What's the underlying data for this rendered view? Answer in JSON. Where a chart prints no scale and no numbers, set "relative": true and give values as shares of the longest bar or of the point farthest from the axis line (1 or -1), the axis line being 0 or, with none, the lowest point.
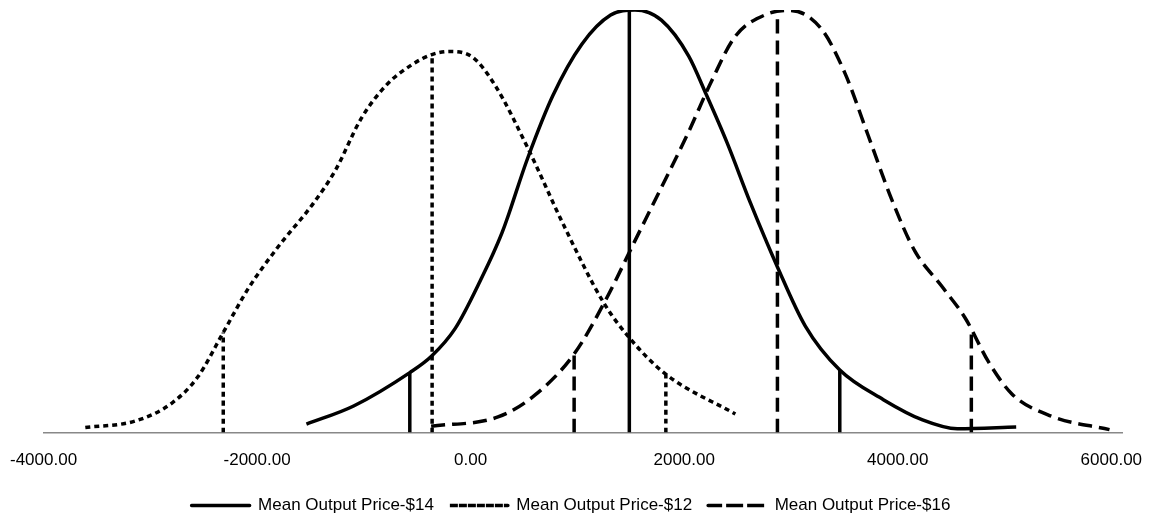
{
  "chart_data": {
    "type": "line",
    "relative": true,
    "xlim": [
      -4000,
      6100
    ],
    "xticks": [
      {
        "value": -4000,
        "label": "-4000.00"
      },
      {
        "value": -2000,
        "label": "-2000.00"
      },
      {
        "value": 0,
        "label": "0.00"
      },
      {
        "value": 2000,
        "label": "2000.00"
      },
      {
        "value": 4000,
        "label": "4000.00"
      },
      {
        "value": 6000,
        "label": "6000.00"
      }
    ],
    "grid": false,
    "legend": "bottom",
    "marker": "none",
    "series": [
      {
        "name": "Mean Output Price-$14",
        "color": "#000000",
        "line_style": "solid",
        "x": [
          -1538,
          -1096,
          -570,
          -370,
          -146,
          91,
          294,
          532,
          769,
          1041,
          1311,
          1538,
          1786,
          2042,
          2203,
          2403,
          2621,
          2873,
          3134,
          3457,
          3865,
          4232,
          4558,
          5109
        ],
        "values": [
          0.02,
          0.063,
          0.142,
          0.18,
          0.246,
          0.36,
          0.473,
          0.648,
          0.797,
          0.919,
          0.988,
          1.0,
          0.976,
          0.891,
          0.802,
          0.685,
          0.543,
          0.392,
          0.252,
          0.148,
          0.078,
          0.03,
          0.009,
          0.013
        ]
      },
      {
        "name": "Mean Output Price-$12",
        "color": "#000000",
        "line_style": "dotted",
        "x": [
          -3609,
          -3134,
          -2792,
          -2555,
          -2317,
          -2080,
          -1808,
          -1472,
          -1266,
          -1026,
          -791,
          -554,
          -370,
          -199,
          19,
          228,
          532,
          871,
          1244,
          1491,
          1823,
          2479
        ],
        "values": [
          0.012,
          0.028,
          0.071,
          0.132,
          0.237,
          0.342,
          0.438,
          0.543,
          0.621,
          0.743,
          0.822,
          0.87,
          0.894,
          0.902,
          0.888,
          0.822,
          0.675,
          0.491,
          0.308,
          0.223,
          0.139,
          0.044
        ]
      },
      {
        "name": "Mean Output Price-$16",
        "color": "#000000",
        "line_style": "dashed",
        "x": [
          -370,
          256,
          598,
          969,
          1273,
          1529,
          1786,
          2042,
          2260,
          2479,
          2773,
          2992,
          3282,
          3501,
          3723,
          3941,
          4159,
          4416,
          4634,
          4853,
          5071,
          5437,
          5983
        ],
        "values": [
          0.015,
          0.037,
          0.088,
          0.186,
          0.318,
          0.449,
          0.58,
          0.712,
          0.834,
          0.938,
          0.99,
          0.999,
          0.956,
          0.853,
          0.703,
          0.553,
          0.43,
          0.345,
          0.27,
          0.166,
          0.091,
          0.039,
          0.007
        ]
      },
      {
        "type": "line",
        "color": "#000000",
        "line_style": "solid",
        "x": [
          -570,
          -570
        ],
        "values": [
          0,
          0.142
        ]
      },
      {
        "type": "line",
        "color": "#000000",
        "line_style": "solid",
        "x": [
          1486,
          1486
        ],
        "values": [
          0,
          1.0
        ]
      },
      {
        "type": "line",
        "color": "#000000",
        "line_style": "solid",
        "x": [
          3457,
          3457
        ],
        "values": [
          0,
          0.148
        ]
      },
      {
        "type": "line",
        "color": "#000000",
        "line_style": "dotted",
        "x": [
          -2317,
          -2317
        ],
        "values": [
          0,
          0.237
        ]
      },
      {
        "type": "line",
        "color": "#000000",
        "line_style": "dotted",
        "x": [
          -361,
          -361
        ],
        "values": [
          0,
          0.892
        ]
      },
      {
        "type": "line",
        "color": "#000000",
        "line_style": "dotted",
        "x": [
          1828,
          1828
        ],
        "values": [
          0,
          0.139
        ]
      },
      {
        "type": "line",
        "color": "#000000",
        "line_style": "dashed",
        "x": [
          969,
          969
        ],
        "values": [
          0,
          0.186
        ]
      },
      {
        "type": "line",
        "color": "#000000",
        "line_style": "dashed",
        "x": [
          2873,
          2873
        ],
        "values": [
          0,
          0.994
        ]
      },
      {
        "type": "line",
        "color": "#000000",
        "line_style": "dashed",
        "x": [
          4689,
          4689
        ],
        "values": [
          0,
          0.242
        ]
      }
    ]
  }
}
